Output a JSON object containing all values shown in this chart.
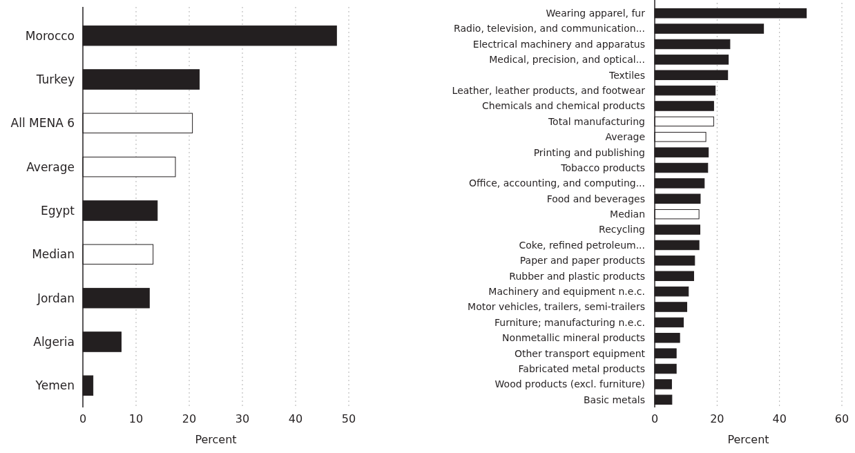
{
  "chart_data": [
    {
      "type": "bar",
      "orientation": "horizontal",
      "categories": [
        "Morocco",
        "Turkey",
        "All MENA 6",
        "Average",
        "Egypt",
        "Median",
        "Jordan",
        "Algeria",
        "Yemen"
      ],
      "values": [
        47.7,
        21.9,
        20.6,
        17.4,
        14.0,
        13.2,
        12.5,
        7.2,
        1.9
      ],
      "colors": [
        "#231f20",
        "#231f20",
        "#ffffff",
        "#ffffff",
        "#231f20",
        "#ffffff",
        "#231f20",
        "#231f20",
        "#231f20"
      ],
      "xlim": [
        0,
        50
      ],
      "xticks": [
        0,
        10,
        20,
        30,
        40,
        50
      ],
      "xlabel": "Percent",
      "grid": "x"
    },
    {
      "type": "bar",
      "orientation": "horizontal",
      "categories": [
        "Wearing apparel, fur",
        "Radio, television, and communication...",
        "Electrical machinery and apparatus",
        "Medical, precision, and optical...",
        "Textiles",
        "Leather, leather products, and footwear",
        "Chemicals and chemical products",
        "Total manufacturing",
        "Average",
        "Printing and publishing",
        "Tobacco products",
        "Office, accounting, and computing...",
        "Food and beverages",
        "Median",
        "Recycling",
        "Coke, refined petroleum...",
        "Paper and paper products",
        "Rubber and plastic products",
        "Machinery and equipment n.e.c.",
        "Motor vehicles, trailers, semi-trailers",
        "Furniture; manufacturing n.e.c.",
        "Nonmetallic mineral products",
        "Other transport equipment",
        "Fabricated metal products",
        "Wood products (excl. furniture)",
        "Basic metals"
      ],
      "values": [
        48.6,
        34.9,
        24.1,
        23.6,
        23.4,
        19.4,
        18.9,
        18.9,
        16.4,
        17.2,
        17.0,
        15.9,
        14.6,
        14.2,
        14.5,
        14.2,
        12.8,
        12.5,
        10.8,
        10.3,
        9.2,
        8.0,
        6.9,
        6.9,
        5.4,
        5.5
      ],
      "colors": [
        "#231f20",
        "#231f20",
        "#231f20",
        "#231f20",
        "#231f20",
        "#231f20",
        "#231f20",
        "#ffffff",
        "#ffffff",
        "#231f20",
        "#231f20",
        "#231f20",
        "#231f20",
        "#ffffff",
        "#231f20",
        "#231f20",
        "#231f20",
        "#231f20",
        "#231f20",
        "#231f20",
        "#231f20",
        "#231f20",
        "#231f20",
        "#231f20",
        "#231f20",
        "#231f20"
      ],
      "xlim": [
        0,
        60
      ],
      "xticks": [
        0,
        20,
        40,
        60
      ],
      "xlabel": "Percent",
      "grid": "x"
    }
  ]
}
